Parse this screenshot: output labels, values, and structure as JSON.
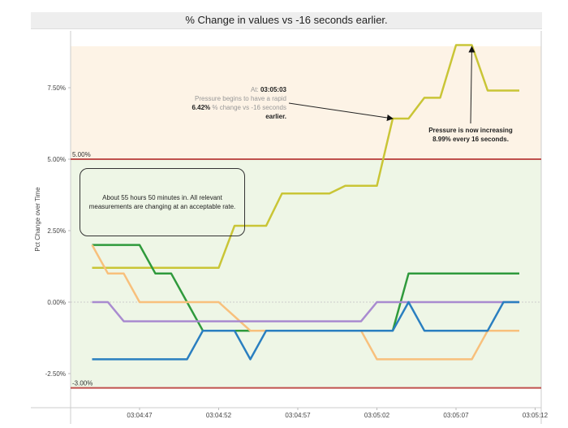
{
  "chart_data": {
    "type": "line",
    "title": "% Change in values vs -16 seconds earlier.",
    "xlabel": "",
    "ylabel": "Pct Change over Time",
    "ylim": [
      -3.6,
      9.5
    ],
    "x_seconds_after_0304": [
      44,
      45,
      46,
      47,
      48,
      49,
      50,
      51,
      52,
      53,
      54,
      55,
      56,
      57,
      58,
      59,
      60,
      61,
      62,
      63,
      64,
      65,
      66,
      67,
      68,
      69,
      70,
      71
    ],
    "xlim_seconds_after_0304": [
      40,
      73
    ],
    "x_ticks": [
      {
        "t": 47,
        "label": "03:04:47"
      },
      {
        "t": 52,
        "label": "03:04:52"
      },
      {
        "t": 57,
        "label": "03:04:57"
      },
      {
        "t": 62,
        "label": "03:05:02"
      },
      {
        "t": 67,
        "label": "03:05:07"
      },
      {
        "t": 72,
        "label": "03:05:12"
      }
    ],
    "y_ticks": [
      {
        "v": 7.5,
        "label": "7.50%"
      },
      {
        "v": 5,
        "label": "5.00%"
      },
      {
        "v": 2.5,
        "label": "2.50%"
      },
      {
        "v": 0,
        "label": "0.00%"
      },
      {
        "v": -2.5,
        "label": "-2.50%"
      }
    ],
    "thresholds": [
      {
        "v": 5,
        "label": "5.00%",
        "color": "#c0504d"
      },
      {
        "v": -3,
        "label": "-3.00%",
        "color": "#c0504d"
      }
    ],
    "bands": [
      {
        "from": 5,
        "to": 8.95,
        "color": "#fdf3e6"
      },
      {
        "from": -3,
        "to": 5,
        "color": "#eef6e6"
      }
    ],
    "series": [
      {
        "name": "pressure",
        "color": "#c9c536",
        "values": [
          1.2,
          1.2,
          1.2,
          1.2,
          1.2,
          1.2,
          1.2,
          1.2,
          1.2,
          2.67,
          2.67,
          2.67,
          3.8,
          3.8,
          3.8,
          3.8,
          4.07,
          4.07,
          4.07,
          6.42,
          6.42,
          7.15,
          7.15,
          8.99,
          8.99,
          7.4,
          7.4,
          7.4
        ]
      },
      {
        "name": "green",
        "color": "#2f9a3c",
        "values": [
          2,
          2,
          2,
          2,
          1,
          1,
          0,
          -1,
          -1,
          -1,
          -1,
          -1,
          -1,
          -1,
          -1,
          -1,
          -1,
          -1,
          -1,
          -1,
          1,
          1,
          1,
          1,
          1,
          1,
          1,
          1
        ]
      },
      {
        "name": "orange",
        "color": "#f8c07c",
        "values": [
          2,
          1,
          1,
          0,
          0,
          0,
          0,
          0,
          0,
          -0.5,
          -1,
          -1,
          -1,
          -1,
          -1,
          -1,
          -1,
          -1,
          -2,
          -2,
          -2,
          -2,
          -2,
          -2,
          -2,
          -1,
          -1,
          -1
        ]
      },
      {
        "name": "purple",
        "color": "#a98bd0",
        "values": [
          0,
          0,
          -0.67,
          -0.67,
          -0.67,
          -0.67,
          -0.67,
          -0.67,
          -0.67,
          -0.67,
          -0.67,
          -0.67,
          -0.67,
          -0.67,
          -0.67,
          -0.67,
          -0.67,
          -0.67,
          0,
          0,
          0,
          0,
          0,
          0,
          0,
          0,
          0,
          0
        ]
      },
      {
        "name": "blue",
        "color": "#2a7fc0",
        "values": [
          -2,
          -2,
          -2,
          -2,
          -2,
          -2,
          -2,
          -1,
          -1,
          -1,
          -2,
          -1,
          -1,
          -1,
          -1,
          -1,
          -1,
          -1,
          -1,
          -1,
          0,
          -1,
          -1,
          -1,
          -1,
          -1,
          0,
          0
        ]
      }
    ],
    "annotations": {
      "box_text": "About 55 hours 50 minutes in.  All relevant measurements are changing at an acceptable rate.",
      "a1_prefix": "At: ",
      "a1_time": "03:05:03",
      "a1_line2": "Pressure begins to have a rapid",
      "a1_pct": "6.42%",
      "a1_line3": " % change vs -16 seconds",
      "a1_line4": "earlier.",
      "a1_target": {
        "t": 63,
        "v": 6.42
      },
      "a2_line1": "Pressure is now increasing",
      "a2_line2": "8.99% every 16 seconds.",
      "a2_target": {
        "t": 68,
        "v": 8.99
      }
    },
    "grid": false,
    "legend": "none"
  }
}
